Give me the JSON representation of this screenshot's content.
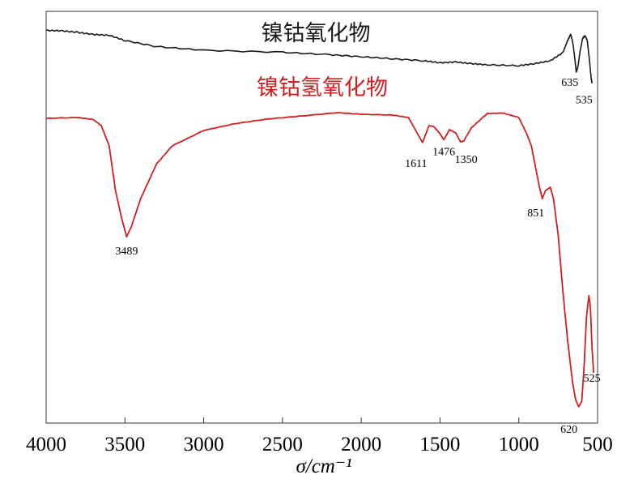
{
  "chart_data": {
    "type": "line",
    "title": "",
    "xlabel": "σ/cm⁻¹",
    "ylabel": "",
    "xlim": [
      4000,
      500
    ],
    "ylim": [
      0,
      100
    ],
    "x_reversed": true,
    "x_ticks": [
      "4000",
      "3500",
      "3000",
      "2500",
      "2000",
      "1500",
      "1000",
      "500"
    ],
    "grid": false,
    "series": [
      {
        "name": "镍钴氧化物",
        "color": "#1a1a1a",
        "points": [
          [
            4000,
            96.5
          ],
          [
            3900,
            96.4
          ],
          [
            3800,
            96.0
          ],
          [
            3700,
            95.5
          ],
          [
            3600,
            95.3
          ],
          [
            3500,
            94.0
          ],
          [
            3300,
            92.5
          ],
          [
            3000,
            91.6
          ],
          [
            2500,
            91.1
          ],
          [
            2200,
            90.5
          ],
          [
            2000,
            90.0
          ],
          [
            1800,
            89.5
          ],
          [
            1600,
            89.0
          ],
          [
            1500,
            88.5
          ],
          [
            1400,
            88.7
          ],
          [
            1300,
            88.3
          ],
          [
            1200,
            88.0
          ],
          [
            1000,
            87.8
          ],
          [
            900,
            88.3
          ],
          [
            800,
            89.0
          ],
          [
            720,
            91.0
          ],
          [
            690,
            94.0
          ],
          [
            670,
            95.6
          ],
          [
            655,
            93.0
          ],
          [
            640,
            88.0
          ],
          [
            635,
            86.2
          ],
          [
            625,
            87.5
          ],
          [
            610,
            91.5
          ],
          [
            595,
            94.5
          ],
          [
            580,
            95.2
          ],
          [
            565,
            94.0
          ],
          [
            550,
            88.5
          ],
          [
            540,
            84.5
          ],
          [
            535,
            83.5
          ]
        ]
      },
      {
        "name": "镍钴氢氧化物",
        "color": "#d11f1f",
        "points": [
          [
            4000,
            74.8
          ],
          [
            3800,
            75.0
          ],
          [
            3700,
            74.5
          ],
          [
            3650,
            73.0
          ],
          [
            3600,
            68.0
          ],
          [
            3560,
            57.0
          ],
          [
            3520,
            50.0
          ],
          [
            3489,
            45.6
          ],
          [
            3460,
            48.0
          ],
          [
            3400,
            55.0
          ],
          [
            3300,
            63.5
          ],
          [
            3200,
            68.0
          ],
          [
            3000,
            71.8
          ],
          [
            2800,
            73.5
          ],
          [
            2600,
            74.6
          ],
          [
            2400,
            75.3
          ],
          [
            2150,
            76.2
          ],
          [
            2000,
            75.8
          ],
          [
            1800,
            75.6
          ],
          [
            1700,
            75.0
          ],
          [
            1650,
            71.5
          ],
          [
            1611,
            68.8
          ],
          [
            1570,
            73.0
          ],
          [
            1540,
            72.8
          ],
          [
            1500,
            71.0
          ],
          [
            1476,
            69.5
          ],
          [
            1440,
            72.0
          ],
          [
            1400,
            71.2
          ],
          [
            1370,
            69.0
          ],
          [
            1350,
            69.2
          ],
          [
            1300,
            72.5
          ],
          [
            1200,
            76.0
          ],
          [
            1100,
            76.1
          ],
          [
            1000,
            75.0
          ],
          [
            950,
            71.0
          ],
          [
            920,
            68.0
          ],
          [
            900,
            64.0
          ],
          [
            870,
            58.0
          ],
          [
            851,
            55.0
          ],
          [
            830,
            57.0
          ],
          [
            800,
            57.8
          ],
          [
            780,
            55.0
          ],
          [
            750,
            46.0
          ],
          [
            720,
            32.0
          ],
          [
            690,
            20.0
          ],
          [
            660,
            10.0
          ],
          [
            640,
            5.5
          ],
          [
            620,
            3.6
          ],
          [
            600,
            5.0
          ],
          [
            585,
            14.0
          ],
          [
            570,
            26.0
          ],
          [
            555,
            31.0
          ],
          [
            545,
            28.0
          ],
          [
            535,
            18.0
          ],
          [
            525,
            12.0
          ]
        ]
      }
    ],
    "annotations": [
      {
        "series": 0,
        "text": "635",
        "x": 635,
        "y": 86.2
      },
      {
        "series": 0,
        "text": "535",
        "x": 535,
        "y": 83.5
      },
      {
        "series": 1,
        "text": "3489",
        "x": 3489,
        "y": 45.6
      },
      {
        "series": 1,
        "text": "1611",
        "x": 1611,
        "y": 68.8
      },
      {
        "series": 1,
        "text": "1476",
        "x": 1476,
        "y": 69.5
      },
      {
        "series": 1,
        "text": "1350",
        "x": 1350,
        "y": 69.2
      },
      {
        "series": 1,
        "text": "851",
        "x": 851,
        "y": 55.0
      },
      {
        "series": 1,
        "text": "620",
        "x": 620,
        "y": 3.6
      },
      {
        "series": 1,
        "text": "525",
        "x": 525,
        "y": 12.0
      }
    ],
    "legend": "inline-top"
  }
}
